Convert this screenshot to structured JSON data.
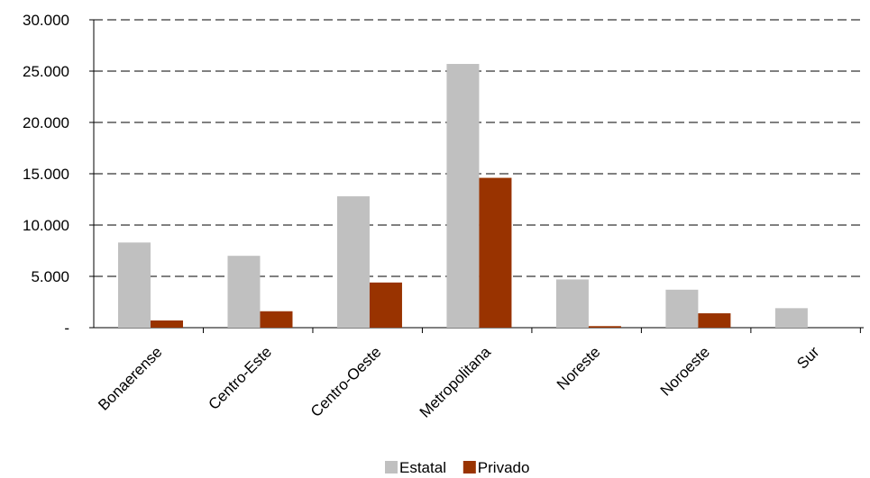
{
  "chart_data": {
    "type": "bar",
    "categories": [
      "Bonaerense",
      "Centro-Este",
      "Centro-Oeste",
      "Metropolitana",
      "Noreste",
      "Noroeste",
      "Sur"
    ],
    "series": [
      {
        "name": "Estatal",
        "values": [
          8300,
          7000,
          12800,
          25700,
          4700,
          3700,
          1900
        ],
        "color": "#c0c0c0"
      },
      {
        "name": "Privado",
        "values": [
          700,
          1600,
          4400,
          14600,
          150,
          1400,
          0
        ],
        "color": "#993300"
      }
    ],
    "y_ticks": [
      0,
      5000,
      10000,
      15000,
      20000,
      25000,
      30000
    ],
    "y_tick_labels": [
      "-",
      "5.000",
      "10.000",
      "15.000",
      "20.000",
      "25.000",
      "30.000"
    ],
    "ylim": [
      0,
      30000
    ],
    "grid": true,
    "legend_position": "bottom"
  }
}
